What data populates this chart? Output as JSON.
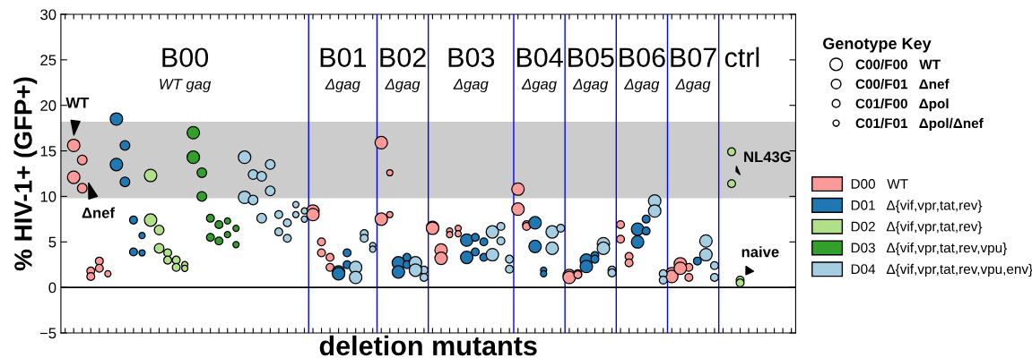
{
  "chart_data": {
    "type": "bubble",
    "xlabel": "deletion mutants",
    "ylabel": "% HIV-1+ (GFP+)",
    "legend_title": "Genotype Key",
    "legend": "right",
    "tick_labels": "y",
    "grid": false,
    "marker": "circle",
    "categories": [
      null,
      null,
      null,
      null,
      null,
      null,
      null,
      null,
      null,
      null,
      null,
      null,
      null,
      null,
      null,
      null,
      null,
      null,
      null,
      null,
      null,
      null,
      null,
      null,
      null,
      null,
      null,
      null,
      null,
      null,
      null,
      null,
      null,
      null,
      null,
      null,
      null,
      null,
      null,
      null,
      null,
      null,
      null,
      null,
      null,
      null,
      null,
      null,
      null,
      null,
      null,
      null,
      null,
      null,
      null,
      null,
      null,
      null,
      null,
      null,
      null,
      null,
      null,
      null,
      null,
      null,
      null,
      null,
      null,
      null,
      null,
      null,
      null,
      null,
      null,
      null,
      null,
      null,
      null,
      null,
      null,
      null,
      null,
      null,
      null,
      null
    ],
    "ylim": [
      -5,
      30
    ],
    "yticks": [
      {
        "value": -5,
        "label": "−5"
      },
      0,
      5,
      10,
      15,
      20,
      25,
      30
    ],
    "size_legend": [
      {
        "value": 1,
        "label": "C00/F00   WT"
      },
      {
        "value": 0.6,
        "label": "C00/F01   Δnef"
      },
      {
        "value": 0.4,
        "label": "C01/F00   Δpol"
      },
      {
        "value": 0.25,
        "label": "C01/F01   Δpol/Δnef"
      }
    ],
    "series": [
      {
        "name": "D00   WT",
        "color": "#fb9a99",
        "values": [
          null,
          15.6,
          14.0,
          1.8,
          2.9,
          1.5,
          null,
          null,
          null,
          null,
          null,
          null,
          null,
          null,
          null,
          null,
          null,
          null,
          null,
          null,
          null,
          null,
          null,
          null,
          null,
          null,
          null,
          null,
          null,
          8.4,
          5.0,
          3.3,
          null,
          null,
          null,
          null,
          null,
          15.9,
          12.6,
          null,
          null,
          null,
          null,
          6.6,
          4.1,
          6.2,
          6.5,
          null,
          null,
          null,
          null,
          null,
          null,
          10.8,
          6.9,
          null,
          null,
          null,
          null,
          1.3,
          1.5,
          null,
          null,
          null,
          null,
          6.9,
          3.4,
          null,
          null,
          null,
          null,
          1.5,
          2.6,
          2.2,
          null,
          null,
          null,
          null,
          null,
          null,
          null,
          null,
          null,
          null,
          null,
          null
        ],
        "sizes": [
          null,
          1,
          0.6,
          0.4,
          0.4,
          0.25,
          null,
          null,
          null,
          null,
          null,
          null,
          null,
          null,
          null,
          null,
          null,
          null,
          null,
          null,
          null,
          null,
          null,
          null,
          null,
          null,
          null,
          null,
          null,
          1,
          0.4,
          0.4,
          null,
          null,
          null,
          null,
          null,
          1,
          0.25,
          null,
          null,
          null,
          null,
          1,
          1,
          0.25,
          0.25,
          null,
          null,
          null,
          null,
          null,
          null,
          1,
          0.4,
          null,
          null,
          null,
          null,
          1,
          0.4,
          null,
          null,
          null,
          null,
          0.4,
          0.4,
          null,
          null,
          null,
          null,
          1,
          1,
          0.4,
          null,
          null,
          null,
          null,
          null,
          null,
          null,
          null,
          null,
          null,
          null,
          null
        ]
      },
      {
        "color": "#fb9a99",
        "values": [
          null,
          12.1,
          10.9,
          1.2,
          2.1,
          null,
          null,
          null,
          null,
          null,
          null,
          null,
          null,
          null,
          null,
          null,
          null,
          null,
          null,
          null,
          null,
          null,
          null,
          null,
          null,
          null,
          null,
          null,
          null,
          8.0,
          3.8,
          2.2,
          null,
          null,
          null,
          null,
          null,
          7.5,
          8.0,
          null,
          null,
          null,
          null,
          6.5,
          3.2,
          5.8,
          5.9,
          null,
          null,
          null,
          null,
          null,
          null,
          8.6,
          6.7,
          null,
          null,
          null,
          null,
          1.1,
          1.4,
          null,
          null,
          null,
          null,
          5.3,
          2.7,
          null,
          null,
          null,
          null,
          1.2,
          2.1,
          1.1,
          null,
          null,
          null,
          null,
          null,
          null,
          null,
          null,
          null,
          null,
          null,
          null
        ],
        "sizes": [
          null,
          1,
          0.6,
          0.4,
          0.4,
          null,
          null,
          null,
          null,
          null,
          null,
          null,
          null,
          null,
          null,
          null,
          null,
          null,
          null,
          null,
          null,
          null,
          null,
          null,
          null,
          null,
          null,
          null,
          null,
          1,
          0.4,
          0.4,
          null,
          null,
          null,
          null,
          null,
          1,
          0.25,
          null,
          null,
          null,
          null,
          1,
          1,
          0.25,
          0.25,
          null,
          null,
          null,
          null,
          null,
          null,
          1,
          0.4,
          null,
          null,
          null,
          null,
          1,
          0.4,
          null,
          null,
          null,
          null,
          0.4,
          0.4,
          null,
          null,
          null,
          null,
          1,
          1,
          0.4,
          null,
          null,
          null,
          null,
          null,
          null,
          null,
          null,
          null,
          null,
          null,
          null
        ]
      },
      {
        "name": "D01   Δ{vif,vpr,tat,rev}",
        "color": "#1f78b4",
        "values": [
          null,
          null,
          null,
          null,
          null,
          null,
          18.5,
          15.6,
          7.4,
          5.7,
          null,
          null,
          null,
          null,
          null,
          null,
          null,
          null,
          null,
          null,
          null,
          null,
          null,
          null,
          null,
          null,
          null,
          null,
          null,
          null,
          null,
          null,
          1.7,
          3.8,
          null,
          null,
          null,
          null,
          null,
          2.7,
          3.3,
          null,
          null,
          null,
          null,
          null,
          null,
          5.2,
          5.5,
          5.0,
          null,
          null,
          null,
          null,
          null,
          7.1,
          1.9,
          null,
          null,
          null,
          null,
          3.0,
          3.5,
          null,
          null,
          null,
          null,
          6.4,
          7.5,
          null,
          null,
          null,
          null,
          null,
          2.9,
          null,
          null,
          null,
          null,
          null,
          null,
          null,
          null,
          null,
          null,
          null
        ],
        "sizes": [
          null,
          null,
          null,
          null,
          null,
          null,
          1,
          0.6,
          0.4,
          0.25,
          null,
          null,
          null,
          null,
          null,
          null,
          null,
          null,
          null,
          null,
          null,
          null,
          null,
          null,
          null,
          null,
          null,
          null,
          null,
          null,
          null,
          null,
          1,
          0.4,
          null,
          null,
          null,
          null,
          null,
          1,
          0.4,
          null,
          null,
          null,
          null,
          null,
          null,
          1,
          0.4,
          0.4,
          null,
          null,
          null,
          null,
          null,
          1,
          0.25,
          null,
          null,
          null,
          null,
          1,
          0.4,
          null,
          null,
          null,
          null,
          1,
          0.4,
          null,
          null,
          null,
          null,
          null,
          0.4,
          null,
          null,
          null,
          null,
          null,
          null,
          null,
          null,
          null,
          null,
          null
        ]
      },
      {
        "color": "#1f78b4",
        "values": [
          null,
          null,
          null,
          null,
          null,
          null,
          13.5,
          11.6,
          3.9,
          3.8,
          null,
          null,
          null,
          null,
          null,
          null,
          null,
          null,
          null,
          null,
          null,
          null,
          null,
          null,
          null,
          null,
          null,
          null,
          null,
          null,
          null,
          null,
          1.5,
          2.5,
          null,
          null,
          null,
          null,
          null,
          1.7,
          2.5,
          null,
          null,
          null,
          null,
          null,
          null,
          3.3,
          3.9,
          3.3,
          null,
          null,
          null,
          null,
          null,
          4.5,
          1.5,
          null,
          null,
          null,
          null,
          2.3,
          3.1,
          null,
          null,
          null,
          null,
          5.0,
          6.2,
          null,
          null,
          null,
          null,
          null,
          null,
          null,
          null,
          null,
          null,
          null,
          null,
          null,
          null,
          null,
          null,
          null
        ],
        "sizes": [
          null,
          null,
          null,
          null,
          null,
          null,
          1,
          0.6,
          0.4,
          0.25,
          null,
          null,
          null,
          null,
          null,
          null,
          null,
          null,
          null,
          null,
          null,
          null,
          null,
          null,
          null,
          null,
          null,
          null,
          null,
          null,
          null,
          null,
          1,
          0.4,
          null,
          null,
          null,
          null,
          null,
          1,
          0.4,
          null,
          null,
          null,
          null,
          null,
          null,
          1,
          0.4,
          0.4,
          null,
          null,
          null,
          null,
          null,
          1,
          0.25,
          null,
          null,
          null,
          null,
          1,
          0.4,
          null,
          null,
          null,
          null,
          1,
          0.4,
          null,
          null,
          null,
          null,
          null,
          null,
          null,
          null,
          null,
          null,
          null,
          null,
          null,
          null,
          null,
          null,
          null
        ]
      },
      {
        "name": "D02   Δ{vif,vpr,tat,rev}",
        "color": "#b2df8a",
        "values": [
          null,
          null,
          null,
          null,
          null,
          null,
          null,
          null,
          null,
          null,
          12.3,
          6.3,
          3.8,
          3.0,
          2.5,
          null,
          null,
          null,
          null,
          null,
          null,
          null,
          null,
          null,
          null,
          null,
          null,
          null,
          null,
          null,
          null,
          null,
          null,
          null,
          null,
          null,
          null,
          null,
          null,
          null,
          null,
          null,
          null,
          null,
          null,
          null,
          null,
          null,
          null,
          null,
          null,
          null,
          null,
          null,
          null,
          null,
          null,
          null,
          null,
          null,
          null,
          null,
          null,
          null,
          null,
          null,
          null,
          null,
          null,
          null,
          null,
          null,
          null,
          null,
          null,
          null,
          null,
          null,
          14.9,
          0.8,
          null,
          null,
          null,
          null,
          null,
          null
        ],
        "sizes": [
          null,
          null,
          null,
          null,
          null,
          null,
          null,
          null,
          null,
          null,
          1,
          0.6,
          0.4,
          0.4,
          0.25,
          null,
          null,
          null,
          null,
          null,
          null,
          null,
          null,
          null,
          null,
          null,
          null,
          null,
          null,
          null,
          null,
          null,
          null,
          null,
          null,
          null,
          null,
          null,
          null,
          null,
          null,
          null,
          null,
          null,
          null,
          null,
          null,
          null,
          null,
          null,
          null,
          null,
          null,
          null,
          null,
          null,
          null,
          null,
          null,
          null,
          null,
          null,
          null,
          null,
          null,
          null,
          null,
          null,
          null,
          null,
          null,
          null,
          null,
          null,
          null,
          null,
          null,
          null,
          0.4,
          0.4,
          null,
          null,
          null,
          null,
          null,
          null
        ]
      },
      {
        "color": "#b2df8a",
        "values": [
          null,
          null,
          null,
          null,
          null,
          null,
          null,
          null,
          null,
          null,
          7.4,
          4.3,
          3.0,
          2.2,
          2.1,
          null,
          null,
          null,
          null,
          null,
          null,
          null,
          null,
          null,
          null,
          null,
          null,
          null,
          null,
          null,
          null,
          null,
          null,
          null,
          null,
          null,
          null,
          null,
          null,
          null,
          null,
          null,
          null,
          null,
          null,
          null,
          null,
          null,
          null,
          null,
          null,
          null,
          null,
          null,
          null,
          null,
          null,
          null,
          null,
          null,
          null,
          null,
          null,
          null,
          null,
          null,
          null,
          null,
          null,
          null,
          null,
          null,
          null,
          null,
          null,
          null,
          null,
          null,
          11.4,
          0.5,
          null,
          null,
          null,
          null,
          null,
          null
        ],
        "sizes": [
          null,
          null,
          null,
          null,
          null,
          null,
          null,
          null,
          null,
          null,
          1,
          0.6,
          0.4,
          0.4,
          0.25,
          null,
          null,
          null,
          null,
          null,
          null,
          null,
          null,
          null,
          null,
          null,
          null,
          null,
          null,
          null,
          null,
          null,
          null,
          null,
          null,
          null,
          null,
          null,
          null,
          null,
          null,
          null,
          null,
          null,
          null,
          null,
          null,
          null,
          null,
          null,
          null,
          null,
          null,
          null,
          null,
          null,
          null,
          null,
          null,
          null,
          null,
          null,
          null,
          null,
          null,
          null,
          null,
          null,
          null,
          null,
          null,
          null,
          null,
          null,
          null,
          null,
          null,
          null,
          0.4,
          0.4,
          null,
          null,
          null,
          null,
          null,
          null
        ]
      },
      {
        "name": "D03   Δ{vif,vpr,tat,rev,vpu}",
        "color": "#33a02c",
        "values": [
          null,
          null,
          null,
          null,
          null,
          null,
          null,
          null,
          null,
          null,
          null,
          null,
          null,
          null,
          null,
          17.0,
          12.6,
          7.6,
          6.9,
          7.3,
          6.5,
          null,
          null,
          null,
          null,
          null,
          null,
          null,
          null,
          null,
          null,
          null,
          null,
          null,
          null,
          null,
          null,
          null,
          null,
          null,
          null,
          null,
          null,
          null,
          null,
          null,
          null,
          null,
          null,
          null,
          null,
          null,
          null,
          null,
          null,
          null,
          null,
          null,
          null,
          null,
          null,
          null,
          null,
          null,
          null,
          null,
          null,
          null,
          null,
          null,
          null,
          null,
          null,
          null,
          null,
          null,
          null,
          null,
          null,
          null,
          null,
          null,
          null,
          null,
          null,
          null
        ],
        "sizes": [
          null,
          null,
          null,
          null,
          null,
          null,
          null,
          null,
          null,
          null,
          null,
          null,
          null,
          null,
          null,
          1,
          0.6,
          0.4,
          0.4,
          0.25,
          0.25,
          null,
          null,
          null,
          null,
          null,
          null,
          null,
          null,
          null,
          null,
          null,
          null,
          null,
          null,
          null,
          null,
          null,
          null,
          null,
          null,
          null,
          null,
          null,
          null,
          null,
          null,
          null,
          null,
          null,
          null,
          null,
          null,
          null,
          null,
          null,
          null,
          null,
          null,
          null,
          null,
          null,
          null,
          null,
          null,
          null,
          null,
          null,
          null,
          null,
          null,
          null,
          null,
          null,
          null,
          null,
          null,
          null,
          null,
          null,
          null,
          null,
          null,
          null,
          null,
          null
        ]
      },
      {
        "color": "#33a02c",
        "values": [
          null,
          null,
          null,
          null,
          null,
          null,
          null,
          null,
          null,
          null,
          null,
          null,
          null,
          null,
          null,
          14.3,
          10.0,
          5.5,
          5.1,
          5.8,
          4.7,
          null,
          null,
          null,
          null,
          null,
          null,
          null,
          null,
          null,
          null,
          null,
          null,
          null,
          null,
          null,
          null,
          null,
          null,
          null,
          null,
          null,
          null,
          null,
          null,
          null,
          null,
          null,
          null,
          null,
          null,
          null,
          null,
          null,
          null,
          null,
          null,
          null,
          null,
          null,
          null,
          null,
          null,
          null,
          null,
          null,
          null,
          null,
          null,
          null,
          null,
          null,
          null,
          null,
          null,
          null,
          null,
          null,
          null,
          null,
          null,
          null,
          null,
          null,
          null,
          null
        ],
        "sizes": [
          null,
          null,
          null,
          null,
          null,
          null,
          null,
          null,
          null,
          null,
          null,
          null,
          null,
          null,
          null,
          1,
          0.6,
          0.4,
          0.4,
          0.25,
          0.25,
          null,
          null,
          null,
          null,
          null,
          null,
          null,
          null,
          null,
          null,
          null,
          null,
          null,
          null,
          null,
          null,
          null,
          null,
          null,
          null,
          null,
          null,
          null,
          null,
          null,
          null,
          null,
          null,
          null,
          null,
          null,
          null,
          null,
          null,
          null,
          null,
          null,
          null,
          null,
          null,
          null,
          null,
          null,
          null,
          null,
          null,
          null,
          null,
          null,
          null,
          null,
          null,
          null,
          null,
          null,
          null,
          null,
          null,
          null,
          null,
          null,
          null,
          null,
          null,
          null
        ]
      },
      {
        "name": "D04   Δ{vif,vpr,tat,rev,vpu,env}",
        "color": "#a6cee3",
        "values": [
          null,
          null,
          null,
          null,
          null,
          null,
          null,
          null,
          null,
          null,
          null,
          null,
          null,
          null,
          null,
          null,
          null,
          null,
          null,
          null,
          null,
          14.3,
          12.4,
          12.2,
          13.5,
          8.0,
          7.1,
          9.1,
          8.4,
          null,
          null,
          null,
          null,
          null,
          2.2,
          5.9,
          4.6,
          null,
          null,
          null,
          null,
          2.7,
          1.9,
          null,
          null,
          null,
          null,
          null,
          null,
          null,
          6.1,
          6.7,
          3.1,
          null,
          null,
          null,
          null,
          6.1,
          6.5,
          null,
          null,
          null,
          null,
          4.8,
          1.9,
          null,
          null,
          null,
          null,
          9.5,
          1.5,
          null,
          null,
          null,
          null,
          5.1,
          2.4,
          null,
          null,
          null,
          null,
          null,
          null,
          null,
          null,
          null
        ],
        "sizes": [
          null,
          null,
          null,
          null,
          null,
          null,
          null,
          null,
          null,
          null,
          null,
          null,
          null,
          null,
          null,
          null,
          null,
          null,
          null,
          null,
          null,
          1,
          0.6,
          0.6,
          0.6,
          0.4,
          0.4,
          0.25,
          0.25,
          null,
          null,
          null,
          null,
          null,
          1,
          0.4,
          0.25,
          null,
          null,
          null,
          null,
          1,
          0.4,
          null,
          null,
          null,
          null,
          null,
          null,
          null,
          1,
          0.4,
          0.4,
          null,
          null,
          null,
          null,
          1,
          0.4,
          null,
          null,
          null,
          null,
          1,
          0.4,
          null,
          null,
          null,
          null,
          1,
          0.4,
          null,
          null,
          null,
          null,
          1,
          0.4,
          null,
          null,
          null,
          null,
          null,
          null,
          null,
          null,
          null
        ]
      },
      {
        "color": "#a6cee3",
        "values": [
          null,
          null,
          null,
          null,
          null,
          null,
          null,
          null,
          null,
          null,
          null,
          null,
          null,
          null,
          null,
          null,
          null,
          null,
          null,
          null,
          null,
          9.9,
          9.6,
          7.6,
          10.6,
          6.1,
          5.4,
          8.0,
          7.5,
          null,
          null,
          null,
          null,
          null,
          1.1,
          5.4,
          4.2,
          null,
          null,
          null,
          null,
          1.9,
          1.1,
          null,
          null,
          null,
          null,
          null,
          null,
          null,
          3.6,
          5.1,
          2.0,
          null,
          null,
          null,
          null,
          4.3,
          null,
          null,
          null,
          null,
          null,
          4.3,
          1.6,
          null,
          null,
          null,
          null,
          8.4,
          0.8,
          null,
          null,
          null,
          null,
          3.6,
          1.1,
          null,
          null,
          null,
          null,
          null,
          null,
          null,
          null,
          null
        ],
        "sizes": [
          null,
          null,
          null,
          null,
          null,
          null,
          null,
          null,
          null,
          null,
          null,
          null,
          null,
          null,
          null,
          null,
          null,
          null,
          null,
          null,
          null,
          1,
          0.6,
          0.6,
          0.6,
          0.4,
          0.4,
          0.25,
          0.25,
          null,
          null,
          null,
          null,
          null,
          1,
          0.4,
          0.25,
          null,
          null,
          null,
          null,
          1,
          0.4,
          null,
          null,
          null,
          null,
          null,
          null,
          null,
          1,
          0.4,
          0.4,
          null,
          null,
          null,
          null,
          1,
          null,
          null,
          null,
          null,
          null,
          1,
          0.4,
          null,
          null,
          null,
          null,
          1,
          0.4,
          null,
          null,
          null,
          null,
          1,
          0.4,
          null,
          null,
          null,
          null,
          null,
          null,
          null,
          null,
          null
        ]
      }
    ],
    "bands": [
      {
        "axis": "y",
        "from": 9.8,
        "to": 18.2,
        "color": "#cccccc"
      }
    ],
    "ref_lines": [
      {
        "axis": "y",
        "value": 0,
        "color": "#000000"
      }
    ],
    "annotations": [
      "B00",
      "B01",
      "B02",
      "B03",
      "B04",
      "B05",
      "B06",
      "B07",
      "ctrl",
      "WT gag",
      "Δgag",
      "Δgag",
      "Δgag",
      "Δgag",
      "Δgag",
      "Δgag",
      "Δgag",
      "WT",
      "Δnef",
      "NL43G",
      "naive"
    ]
  }
}
